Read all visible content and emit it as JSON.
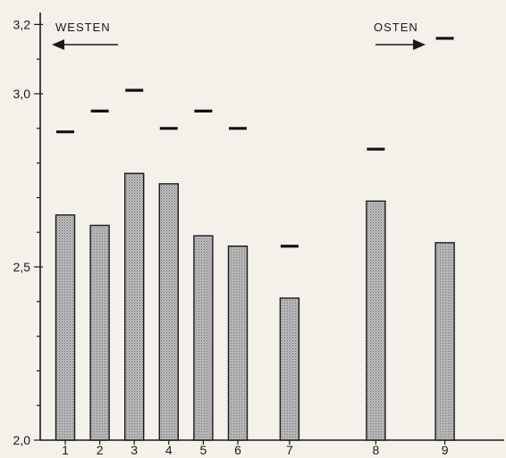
{
  "chart_data": {
    "type": "bar",
    "categories": [
      "1",
      "2",
      "3",
      "4",
      "5",
      "6",
      "7",
      "8",
      "9"
    ],
    "x_positions": [
      1,
      2,
      3,
      4,
      5,
      6,
      7.5,
      10,
      12
    ],
    "series": [
      {
        "values": [
          2.65,
          2.62,
          2.77,
          2.74,
          2.59,
          2.56,
          2.41,
          2.69,
          2.57
        ]
      },
      {
        "values": [
          2.89,
          2.95,
          3.01,
          2.9,
          2.95,
          2.9,
          2.56,
          2.84,
          3.16
        ]
      }
    ],
    "ylim": [
      2.0,
      3.2
    ],
    "yticks": [
      {
        "value": 2.0,
        "label": "2,0"
      },
      {
        "value": 2.5,
        "label": "2,5"
      },
      {
        "value": 3.0,
        "label": "3,0"
      },
      {
        "value": 3.2,
        "label": "3,2"
      }
    ],
    "annotations": {
      "west": "WESTEN",
      "east": "OSTEN"
    },
    "grid": false
  }
}
